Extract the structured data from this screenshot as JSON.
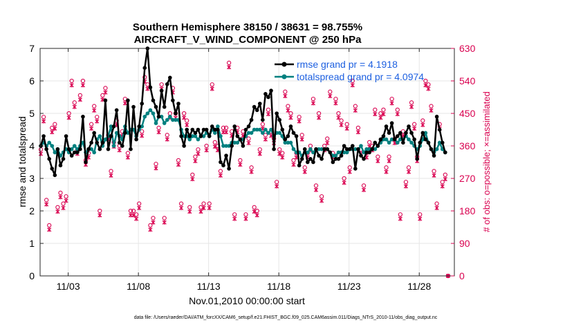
{
  "chart_data": {
    "type": "line",
    "title": "Southern Hemisphere 38150 / 38631 = 98.755%",
    "subtitle": "AIRCRAFT_V_WIND_COMPONENT @ 250 hPa",
    "xlabel": "Nov.01,2010 00:00:00 start",
    "ylabel": "rmse and totalspread",
    "y2label": "# of obs: o=possible; ×=assimilated",
    "footer": "data file: /Users/raeder/DAI/ATM_forcXX/CAM6_setup/f.e21.FHIST_BGC.f09_025.CAM6assim.011/Diags_NTrS_2010-11/obs_diag_output.nc",
    "xlim": [
      1,
      30.5
    ],
    "ylim": [
      0,
      7
    ],
    "y2lim": [
      0,
      630
    ],
    "xticks": [
      3,
      8,
      13,
      18,
      23,
      28
    ],
    "xticklabels": [
      "11/03",
      "11/08",
      "11/13",
      "11/18",
      "11/23",
      "11/28"
    ],
    "yticks": [
      "0",
      "1",
      "2",
      "3",
      "4",
      "5",
      "6",
      "7"
    ],
    "y2ticks": [
      "0",
      "90",
      "180",
      "270",
      "360",
      "450",
      "540",
      "630"
    ],
    "colors": {
      "rmse": "#000000",
      "spread": "#00807f",
      "obs": "#d9004f",
      "legend_text": "#1c5fe0"
    },
    "series": [
      {
        "name": "rmse grand pr = 4.1918",
        "key": "rmse",
        "values": [
          4.0,
          4.3,
          3.9,
          3.6,
          3.3,
          3.1,
          3.9,
          3.4,
          3.6,
          4.3,
          3.9,
          3.7,
          3.8,
          3.8,
          3.9,
          4.9,
          3.5,
          3.9,
          4.1,
          4.4,
          4.1,
          3.9,
          4.1,
          5.4,
          3.9,
          4.3,
          4.6,
          5.1,
          4.1,
          4.0,
          4.4,
          5.4,
          3.9,
          5.2,
          4.2,
          4.6,
          5.3,
          6.4,
          7.0,
          5.8,
          5.4,
          5.2,
          4.9,
          5.7,
          5.2,
          5.9,
          6.1,
          5.4,
          5.0,
          5.3,
          4.3,
          4.0,
          4.5,
          4.3,
          4.5,
          4.4,
          4.5,
          4.3,
          4.5,
          4.5,
          4.3,
          4.6,
          4.5,
          4.5,
          3.5,
          3.4,
          3.7,
          3.3,
          4.0,
          4.6,
          4.3,
          4.2,
          4.0,
          4.5,
          4.6,
          4.8,
          5.2,
          5.1,
          5.3,
          4.8,
          5.6,
          5.5,
          5.7,
          3.9,
          5.0,
          4.8,
          4.5,
          4.2,
          4.3,
          4.6,
          4.4,
          4.3,
          3.4,
          3.6,
          3.9,
          3.5,
          3.6,
          3.5,
          3.9,
          3.7,
          3.6,
          3.9,
          3.9,
          3.8,
          3.5,
          3.6,
          3.6,
          3.7,
          4.0,
          3.9,
          3.9,
          4.0,
          3.3,
          3.9,
          3.7,
          3.6,
          3.8,
          3.8,
          3.9,
          4.1,
          4.0,
          4.2,
          4.3,
          4.6,
          4.4,
          4.7,
          4.2,
          4.3,
          4.4,
          4.1,
          4.4,
          4.6,
          4.4,
          4.2,
          3.6,
          4.1,
          4.4,
          4.2,
          4.1,
          3.9,
          3.7,
          4.9,
          4.5,
          4.1,
          3.8
        ]
      },
      {
        "name": "totalspread grand pr = 4.0974",
        "key": "spread",
        "values": [
          4.0,
          4.1,
          4.0,
          4.1,
          4.0,
          3.8,
          3.9,
          3.7,
          3.8,
          3.9,
          3.8,
          3.9,
          4.0,
          3.9,
          4.0,
          4.1,
          3.8,
          3.9,
          3.9,
          3.8,
          4.2,
          4.3,
          4.0,
          4.2,
          4.3,
          4.6,
          4.0,
          4.4,
          4.3,
          4.2,
          4.6,
          4.4,
          4.5,
          4.5,
          4.3,
          4.5,
          4.6,
          4.9,
          5.0,
          5.1,
          5.0,
          4.7,
          4.9,
          4.9,
          4.7,
          4.8,
          4.9,
          4.8,
          4.8,
          4.8,
          4.5,
          4.3,
          4.3,
          4.2,
          4.3,
          4.3,
          4.2,
          4.3,
          4.3,
          4.4,
          4.3,
          4.5,
          4.4,
          4.6,
          4.3,
          4.0,
          4.0,
          4.0,
          4.1,
          4.1,
          4.1,
          4.2,
          4.2,
          4.3,
          4.4,
          4.4,
          4.5,
          4.5,
          4.5,
          4.4,
          4.5,
          4.4,
          4.5,
          4.3,
          4.4,
          4.4,
          4.3,
          4.1,
          4.1,
          4.1,
          3.9,
          3.8,
          3.8,
          3.7,
          3.8,
          3.8,
          3.9,
          3.8,
          3.9,
          3.9,
          3.9,
          3.9,
          3.9,
          3.8,
          3.7,
          3.7,
          3.8,
          3.8,
          3.8,
          3.8,
          3.9,
          3.9,
          3.9,
          3.9,
          4.0,
          3.8,
          3.9,
          3.9,
          3.9,
          3.9,
          4.0,
          4.1,
          4.2,
          4.2,
          4.1,
          4.2,
          4.2,
          4.1,
          4.2,
          4.2,
          4.3,
          4.2,
          4.1,
          4.0,
          3.9,
          4.0,
          4.2,
          4.4,
          4.1,
          3.9,
          3.8,
          3.9,
          4.1,
          3.9,
          3.8
        ]
      }
    ],
    "obs_possible": [
      350,
      440,
      210,
      140,
      410,
      420,
      190,
      230,
      200,
      220,
      450,
      540,
      480,
      350,
      500,
      540,
      320,
      340,
      420,
      470,
      440,
      180,
      500,
      520,
      390,
      290,
      370,
      430,
      360,
      400,
      490,
      340,
      180,
      180,
      170,
      200,
      400,
      550,
      530,
      140,
      160,
      310,
      410,
      530,
      160,
      390,
      450,
      520,
      450,
      320,
      200,
      450,
      430,
      190,
      280,
      330,
      350,
      190,
      200,
      360,
      200,
      530,
      370,
      360,
      290,
      410,
      410,
      590,
      400,
      170,
      410,
      320,
      400,
      170,
      380,
      300,
      190,
      180,
      350,
      420,
      390,
      460,
      400,
      380,
      260,
      350,
      340,
      510,
      470,
      450,
      320,
      340,
      440,
      390,
      300,
      340,
      360,
      490,
      250,
      450,
      220,
      360,
      380,
      510,
      340,
      490,
      450,
      430,
      270,
      420,
      300,
      540,
      470,
      410,
      350,
      250,
      340,
      370,
      360,
      460,
      330,
      450,
      460,
      300,
      330,
      490,
      380,
      460,
      170,
      400,
      260,
      300,
      480,
      420,
      330,
      170,
      430,
      540,
      530,
      470,
      290,
      200,
      420,
      260,
      280,
      0
    ]
  },
  "legend": {
    "rmse_label": "rmse grand pr = 4.1918",
    "spread_label": "totalspread grand pr = 4.0974"
  }
}
